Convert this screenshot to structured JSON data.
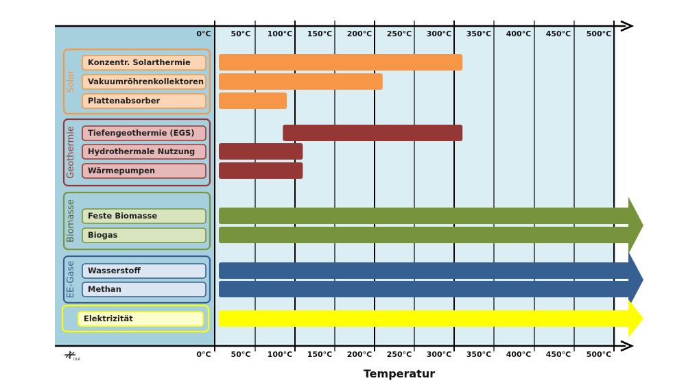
{
  "chart_data": {
    "type": "bar",
    "xlabel": "Temperatur",
    "x_ticks": [
      "0°C",
      "50°C",
      "100°C",
      "150°C",
      "200°C",
      "250°C",
      "300°C",
      "350°C",
      "400°C",
      "450°C",
      "500°C"
    ],
    "xlim": [
      0,
      500
    ],
    "groups": [
      {
        "name": "Solar",
        "color": "#F79646",
        "items": [
          {
            "label": "Konzentr. Solarthermie",
            "from": 0,
            "to": 300
          },
          {
            "label": "Vakuumröhrenkollektoren",
            "from": 0,
            "to": 200
          },
          {
            "label": "Plattenabsorber",
            "from": 0,
            "to": 80
          }
        ]
      },
      {
        "name": "Geothermie",
        "color": "#953735",
        "items": [
          {
            "label": "Tiefengeothermie (EGS)",
            "from": 75,
            "to": 300
          },
          {
            "label": "Hydrothermale Nutzung",
            "from": 0,
            "to": 100
          },
          {
            "label": "Wärmepumpen",
            "from": 0,
            "to": 100
          }
        ]
      },
      {
        "name": "Biomasse",
        "color": "#77933C",
        "items": [
          {
            "label": "Feste Biomasse",
            "from": 0,
            "to": 500,
            "open_ended": true
          },
          {
            "label": "Biogas",
            "from": 0,
            "to": 500,
            "open_ended": true
          }
        ]
      },
      {
        "name": "EE-Gase",
        "color": "#376092",
        "items": [
          {
            "label": "Wasserstoff",
            "from": 0,
            "to": 500,
            "open_ended": true
          },
          {
            "label": "Methan",
            "from": 0,
            "to": 500,
            "open_ended": true
          }
        ]
      },
      {
        "name": "",
        "color": "#FFFF00",
        "items": [
          {
            "label": "Elektrizität",
            "from": 0,
            "to": 500,
            "open_ended": true
          }
        ]
      }
    ],
    "grid": true
  },
  "logo_text": "DLR"
}
